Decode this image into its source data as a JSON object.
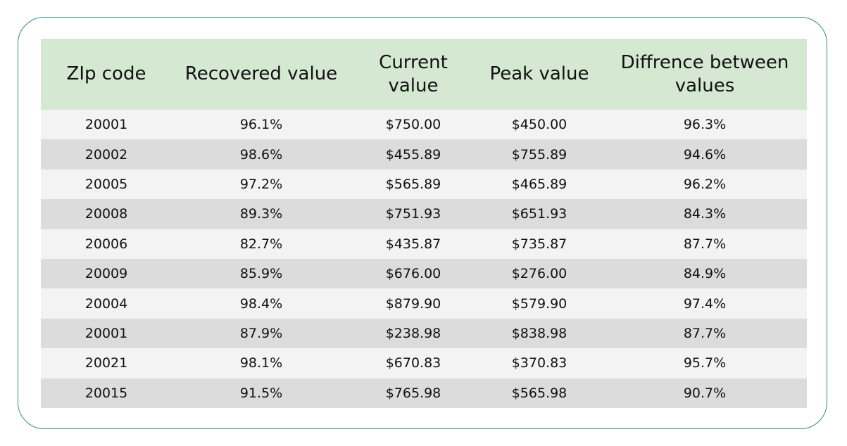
{
  "table": {
    "headers": [
      "ZIp code",
      "Recovered value",
      "Current value",
      "Peak value",
      "Diffrence between values"
    ],
    "rows": [
      [
        "20001",
        "96.1%",
        "$750.00",
        "$450.00",
        "96.3%"
      ],
      [
        "20002",
        "98.6%",
        "$455.89",
        "$755.89",
        "94.6%"
      ],
      [
        "20005",
        "97.2%",
        "$565.89",
        "$465.89",
        "96.2%"
      ],
      [
        "20008",
        "89.3%",
        "$751.93",
        "$651.93",
        "84.3%"
      ],
      [
        "20006",
        "82.7%",
        "$435.87",
        "$735.87",
        "87.7%"
      ],
      [
        "20009",
        "85.9%",
        "$676.00",
        "$276.00",
        "84.9%"
      ],
      [
        "20004",
        "98.4%",
        "$879.90",
        "$579.90",
        "97.4%"
      ],
      [
        "20001",
        "87.9%",
        "$238.98",
        "$838.98",
        "87.7%"
      ],
      [
        "20021",
        "98.1%",
        "$670.83",
        "$370.83",
        "95.7%"
      ],
      [
        "20015",
        "91.5%",
        "$765.98",
        "$565.98",
        "90.7%"
      ]
    ]
  },
  "colors": {
    "frame_border": "#2f8c8c",
    "header_bg": "#d5e8d2",
    "row_light": "#f3f3f3",
    "row_dark": "#dcdcdc"
  }
}
